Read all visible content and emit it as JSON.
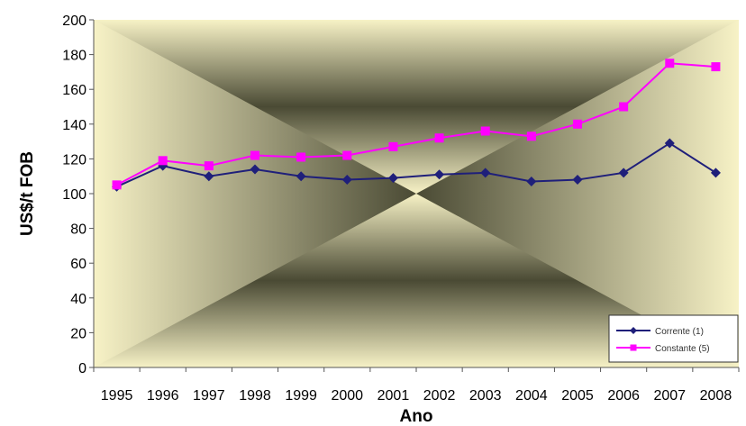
{
  "chart_data": {
    "type": "line",
    "xlabel": "Ano",
    "ylabel": "US$/t FOB",
    "ylim": [
      0,
      200
    ],
    "yticks": [
      0,
      20,
      40,
      60,
      80,
      100,
      120,
      140,
      160,
      180,
      200
    ],
    "categories": [
      "1995",
      "1996",
      "1997",
      "1998",
      "1999",
      "2000",
      "2001",
      "2002",
      "2003",
      "2004",
      "2005",
      "2006",
      "2007",
      "2008"
    ],
    "series": [
      {
        "name": "Corrente (1)",
        "color": "#1f1f7a",
        "marker": "diamond",
        "values": [
          104,
          116,
          110,
          114,
          110,
          108,
          109,
          111,
          112,
          107,
          108,
          112,
          129,
          112
        ]
      },
      {
        "name": "Constante (5)",
        "color": "#ff00ff",
        "marker": "square",
        "values": [
          105,
          119,
          116,
          122,
          121,
          122,
          127,
          132,
          136,
          133,
          140,
          150,
          175,
          173
        ]
      }
    ],
    "grid": false,
    "legend": "bottom-right"
  }
}
